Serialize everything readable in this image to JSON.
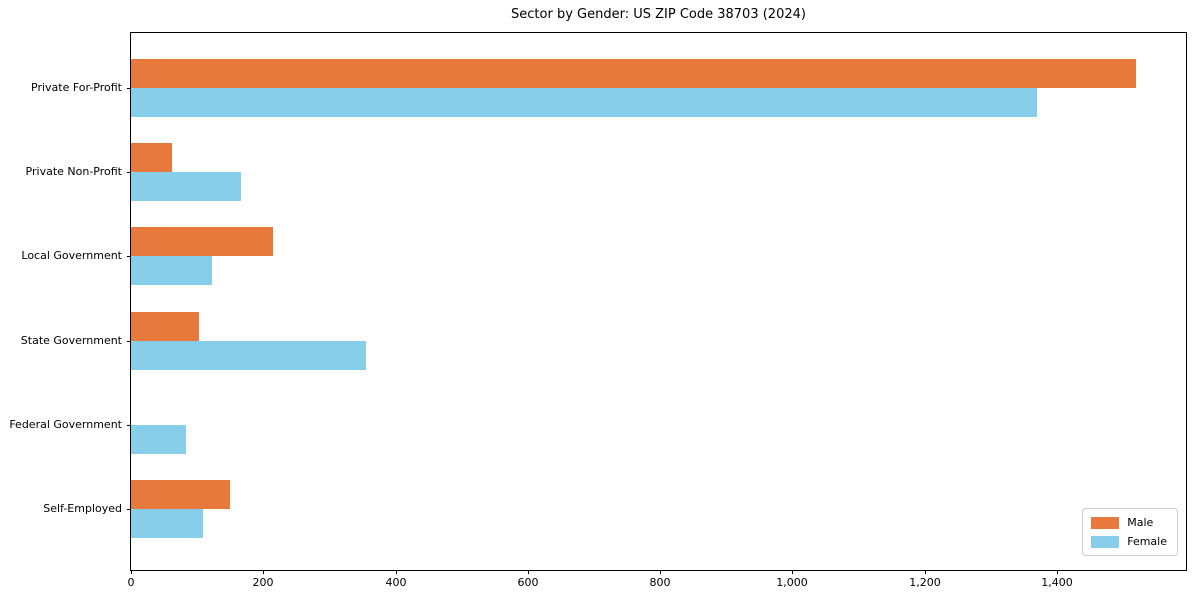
{
  "title": "Sector by Gender: US ZIP Code 38703 (2024)",
  "colors": {
    "male": "#E8793D",
    "female": "#86CEEA",
    "axis": "#000000",
    "legend_border": "#cccccc",
    "background": "#ffffff"
  },
  "chart_data": {
    "type": "bar",
    "orientation": "horizontal",
    "title": "Sector by Gender: US ZIP Code 38703 (2024)",
    "categories": [
      "Private For-Profit",
      "Private Non-Profit",
      "Local Government",
      "State Government",
      "Federal Government",
      "Self-Employed"
    ],
    "series": [
      {
        "name": "Male",
        "color": "#E8793D",
        "values": [
          1520,
          62,
          215,
          103,
          0,
          150
        ]
      },
      {
        "name": "Female",
        "color": "#86CEEA",
        "values": [
          1370,
          166,
          122,
          355,
          83,
          109
        ]
      }
    ],
    "xlabel": "",
    "ylabel": "",
    "xlim": [
      0,
      1595
    ],
    "xticks": [
      0,
      200,
      400,
      600,
      800,
      1000,
      1200,
      1400
    ],
    "xtick_labels": [
      "0",
      "200",
      "400",
      "600",
      "800",
      "1,000",
      "1,200",
      "1,400"
    ],
    "grid": false,
    "legend_position": "lower right"
  },
  "legend": {
    "items": [
      {
        "label": "Male"
      },
      {
        "label": "Female"
      }
    ]
  }
}
